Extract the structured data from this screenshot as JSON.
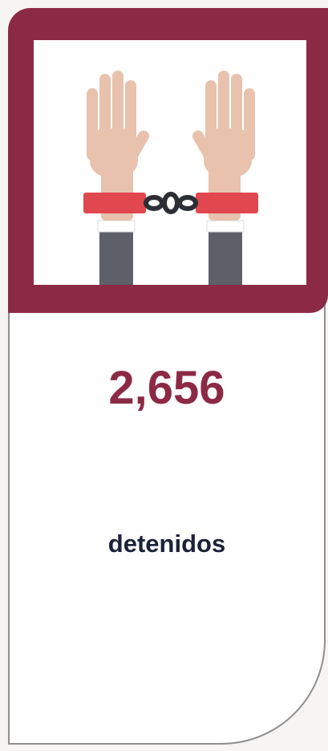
{
  "stat": {
    "value": "2,656",
    "label": "detenidos"
  }
}
